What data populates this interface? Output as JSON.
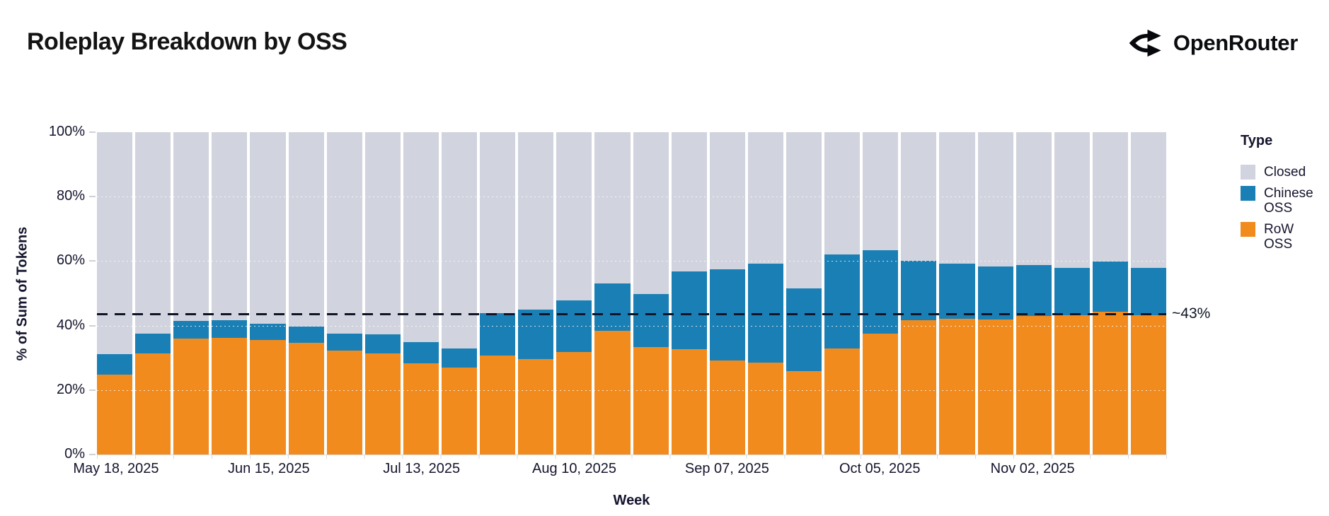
{
  "header": {
    "title": "Roleplay Breakdown by OSS",
    "brand": "OpenRouter"
  },
  "chart_data": {
    "type": "bar",
    "stacked": true,
    "title": "Roleplay Breakdown by OSS",
    "xlabel": "Week",
    "ylabel": "% of Sum of Tokens",
    "ylim": [
      0,
      100
    ],
    "grid": "faint white horizontal lines at 20% steps",
    "y_ticks": [
      {
        "value": 0,
        "label": "0%"
      },
      {
        "value": 20,
        "label": "20%"
      },
      {
        "value": 40,
        "label": "40%"
      },
      {
        "value": 60,
        "label": "60%"
      },
      {
        "value": 80,
        "label": "80%"
      },
      {
        "value": 100,
        "label": "100%"
      }
    ],
    "x_ticks": [
      {
        "index": 0,
        "label": "May 18, 2025"
      },
      {
        "index": 4,
        "label": "Jun 15, 2025"
      },
      {
        "index": 8,
        "label": "Jul 13, 2025"
      },
      {
        "index": 12,
        "label": "Aug 10, 2025"
      },
      {
        "index": 16,
        "label": "Sep 07, 2025"
      },
      {
        "index": 20,
        "label": "Oct 05, 2025"
      },
      {
        "index": 24,
        "label": "Nov 02, 2025"
      }
    ],
    "categories": [
      "May 18, 2025",
      "May 25, 2025",
      "Jun 01, 2025",
      "Jun 08, 2025",
      "Jun 15, 2025",
      "Jun 22, 2025",
      "Jun 29, 2025",
      "Jul 06, 2025",
      "Jul 13, 2025",
      "Jul 20, 2025",
      "Jul 27, 2025",
      "Aug 03, 2025",
      "Aug 10, 2025",
      "Aug 17, 2025",
      "Aug 24, 2025",
      "Aug 31, 2025",
      "Sep 07, 2025",
      "Sep 14, 2025",
      "Sep 21, 2025",
      "Sep 28, 2025",
      "Oct 05, 2025",
      "Oct 12, 2025",
      "Oct 19, 2025",
      "Oct 26, 2025",
      "Nov 02, 2025",
      "Nov 09, 2025",
      "Nov 16, 2025",
      "Nov 23, 2025"
    ],
    "series": [
      {
        "name": "RoW OSS",
        "color": "#F28B1E",
        "stack_order": "bottom",
        "values": [
          24.8,
          31.4,
          36.0,
          36.2,
          35.5,
          34.7,
          32.2,
          31.4,
          28.4,
          27.0,
          30.6,
          29.5,
          31.8,
          38.4,
          33.3,
          32.7,
          29.2,
          28.5,
          25.9,
          33.0,
          37.5,
          41.7,
          42.2,
          41.8,
          42.9,
          43.3,
          44.3,
          43.3
        ]
      },
      {
        "name": "Chinese OSS",
        "color": "#1A7FB5",
        "stack_order": "middle",
        "values": [
          6.4,
          6.1,
          5.5,
          5.4,
          5.1,
          4.9,
          5.4,
          5.9,
          6.5,
          5.8,
          13.2,
          15.5,
          16.0,
          14.6,
          16.4,
          24.0,
          28.2,
          30.8,
          25.7,
          29.0,
          25.8,
          18.5,
          17.1,
          16.5,
          15.8,
          14.7,
          15.5,
          14.5
        ]
      },
      {
        "name": "Closed",
        "color": "#D1D4DE",
        "stack_order": "top",
        "values": [
          68.8,
          62.5,
          58.5,
          58.4,
          59.4,
          60.4,
          62.4,
          62.7,
          65.1,
          67.2,
          56.2,
          55.0,
          52.2,
          47.0,
          50.3,
          43.3,
          42.6,
          40.7,
          48.4,
          38.0,
          36.7,
          39.8,
          40.7,
          41.7,
          41.3,
          42.0,
          40.2,
          42.2
        ]
      }
    ],
    "annotation": {
      "label": "~43%",
      "value": 43.5,
      "style": "black dashed horizontal line"
    },
    "legend": {
      "title": "Type",
      "position": "right",
      "entries": [
        {
          "label": "Closed",
          "color": "#D1D4DE"
        },
        {
          "label": "Chinese OSS",
          "color": "#1A7FB5"
        },
        {
          "label": "RoW OSS",
          "color": "#F28B1E"
        }
      ]
    }
  }
}
